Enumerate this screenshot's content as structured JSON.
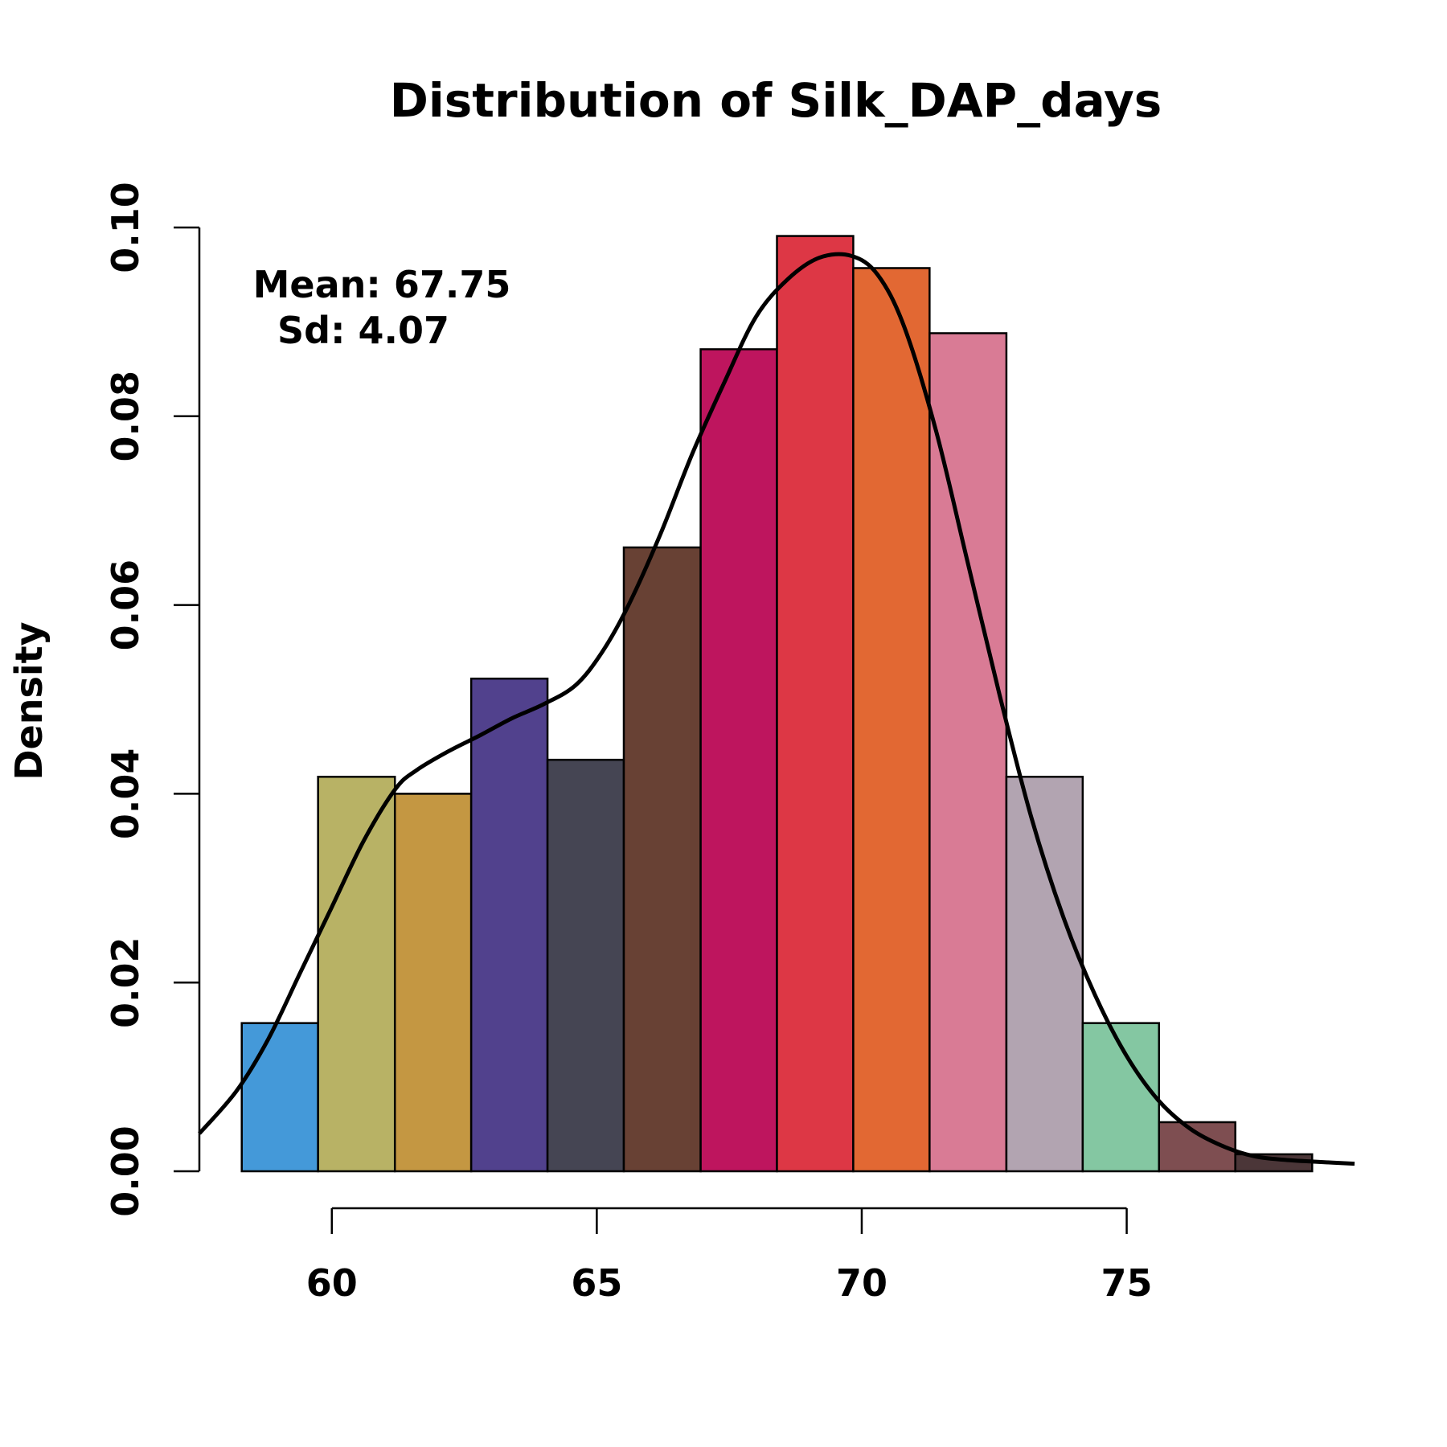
{
  "chart_data": {
    "type": "bar",
    "title": "Distribution of Silk_DAP_days",
    "xlabel": "",
    "ylabel": "Density",
    "xlim": [
      57.5,
      79.3
    ],
    "ylim": [
      0,
      0.1
    ],
    "x_ticks": [
      60,
      65,
      70,
      75
    ],
    "x_tick_labels": [
      "60",
      "65",
      "70",
      "75"
    ],
    "y_ticks": [
      0.0,
      0.02,
      0.04,
      0.06,
      0.08,
      0.1
    ],
    "y_tick_labels": [
      "0.00",
      "0.02",
      "0.04",
      "0.06",
      "0.08",
      "0.10"
    ],
    "grid": false,
    "bins": [
      {
        "x0": 58.3,
        "x1": 59.74,
        "density": 0.0157,
        "color": "#4499d9"
      },
      {
        "x0": 59.74,
        "x1": 61.19,
        "density": 0.0418,
        "color": "#b8b265"
      },
      {
        "x0": 61.19,
        "x1": 62.63,
        "density": 0.04,
        "color": "#c49742"
      },
      {
        "x0": 62.63,
        "x1": 64.07,
        "density": 0.0522,
        "color": "#51418d"
      },
      {
        "x0": 64.07,
        "x1": 65.51,
        "density": 0.0436,
        "color": "#454553"
      },
      {
        "x0": 65.51,
        "x1": 66.96,
        "density": 0.0661,
        "color": "#684134"
      },
      {
        "x0": 66.96,
        "x1": 68.4,
        "density": 0.0871,
        "color": "#be155e"
      },
      {
        "x0": 68.4,
        "x1": 69.84,
        "density": 0.0991,
        "color": "#dd3745"
      },
      {
        "x0": 69.84,
        "x1": 71.28,
        "density": 0.0957,
        "color": "#e26833"
      },
      {
        "x0": 71.28,
        "x1": 72.73,
        "density": 0.0888,
        "color": "#d97b95"
      },
      {
        "x0": 72.73,
        "x1": 74.17,
        "density": 0.0418,
        "color": "#b2a4b1"
      },
      {
        "x0": 74.17,
        "x1": 75.61,
        "density": 0.0157,
        "color": "#84c7a2"
      },
      {
        "x0": 75.61,
        "x1": 77.05,
        "density": 0.0052,
        "color": "#7e4e51"
      },
      {
        "x0": 77.05,
        "x1": 78.5,
        "density": 0.0018,
        "color": "#4b3638"
      }
    ],
    "density_curve": {
      "x": [
        57.5,
        58.2,
        58.8,
        59.4,
        60.0,
        60.6,
        61.2,
        61.6,
        62.2,
        62.8,
        63.4,
        64.0,
        64.6,
        65.1,
        65.6,
        66.2,
        66.8,
        67.4,
        68.0,
        68.6,
        69.2,
        69.8,
        70.3,
        70.8,
        71.4,
        72.0,
        72.6,
        73.2,
        73.8,
        74.4,
        75.0,
        75.6,
        76.2,
        76.8,
        77.4,
        78.0,
        78.6,
        79.3
      ],
      "y": [
        0.004,
        0.0085,
        0.014,
        0.021,
        0.028,
        0.035,
        0.0405,
        0.0425,
        0.0445,
        0.0462,
        0.048,
        0.0495,
        0.0515,
        0.055,
        0.06,
        0.0675,
        0.076,
        0.0835,
        0.0905,
        0.0945,
        0.0968,
        0.097,
        0.095,
        0.0895,
        0.0785,
        0.0645,
        0.0505,
        0.0375,
        0.027,
        0.0187,
        0.0122,
        0.0075,
        0.0045,
        0.0027,
        0.0016,
        0.0012,
        0.001,
        0.0008
      ]
    },
    "annotations": [
      {
        "text": "Mean: 67.75"
      },
      {
        "text": "Sd: 4.07"
      }
    ]
  }
}
